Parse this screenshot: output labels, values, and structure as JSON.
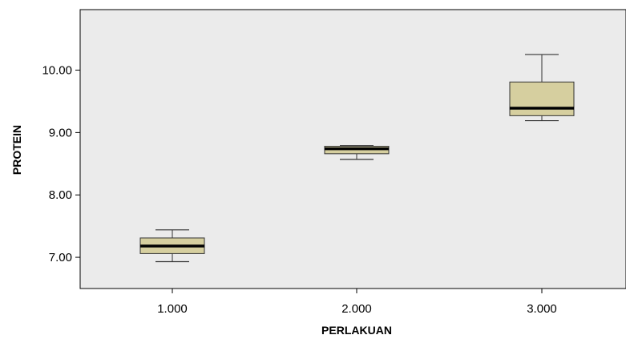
{
  "chart_data": {
    "type": "boxplot",
    "xlabel": "PERLAKUAN",
    "ylabel": "PROTEIN",
    "categories": [
      "1.000",
      "2.000",
      "3.000"
    ],
    "boxes": [
      {
        "category": "1.000",
        "min": 6.93,
        "q1": 7.06,
        "median": 7.18,
        "q3": 7.31,
        "max": 7.44
      },
      {
        "category": "2.000",
        "min": 8.57,
        "q1": 8.66,
        "median": 8.74,
        "q3": 8.78,
        "max": 8.79
      },
      {
        "category": "3.000",
        "min": 9.19,
        "q1": 9.27,
        "median": 9.39,
        "q3": 9.81,
        "max": 10.25
      }
    ],
    "y_ticks": [
      {
        "value": 7,
        "label": "7.00"
      },
      {
        "value": 8,
        "label": "8.00"
      },
      {
        "value": 9,
        "label": "9.00"
      },
      {
        "value": 10,
        "label": "10.00"
      }
    ],
    "ylim": [
      6.5,
      10.97
    ],
    "grid": false,
    "colors": {
      "plot_background": "#ebebeb",
      "box_fill": "#d6cf9f",
      "box_stroke": "#333333",
      "median": "#000000",
      "axis": "#000000"
    }
  }
}
